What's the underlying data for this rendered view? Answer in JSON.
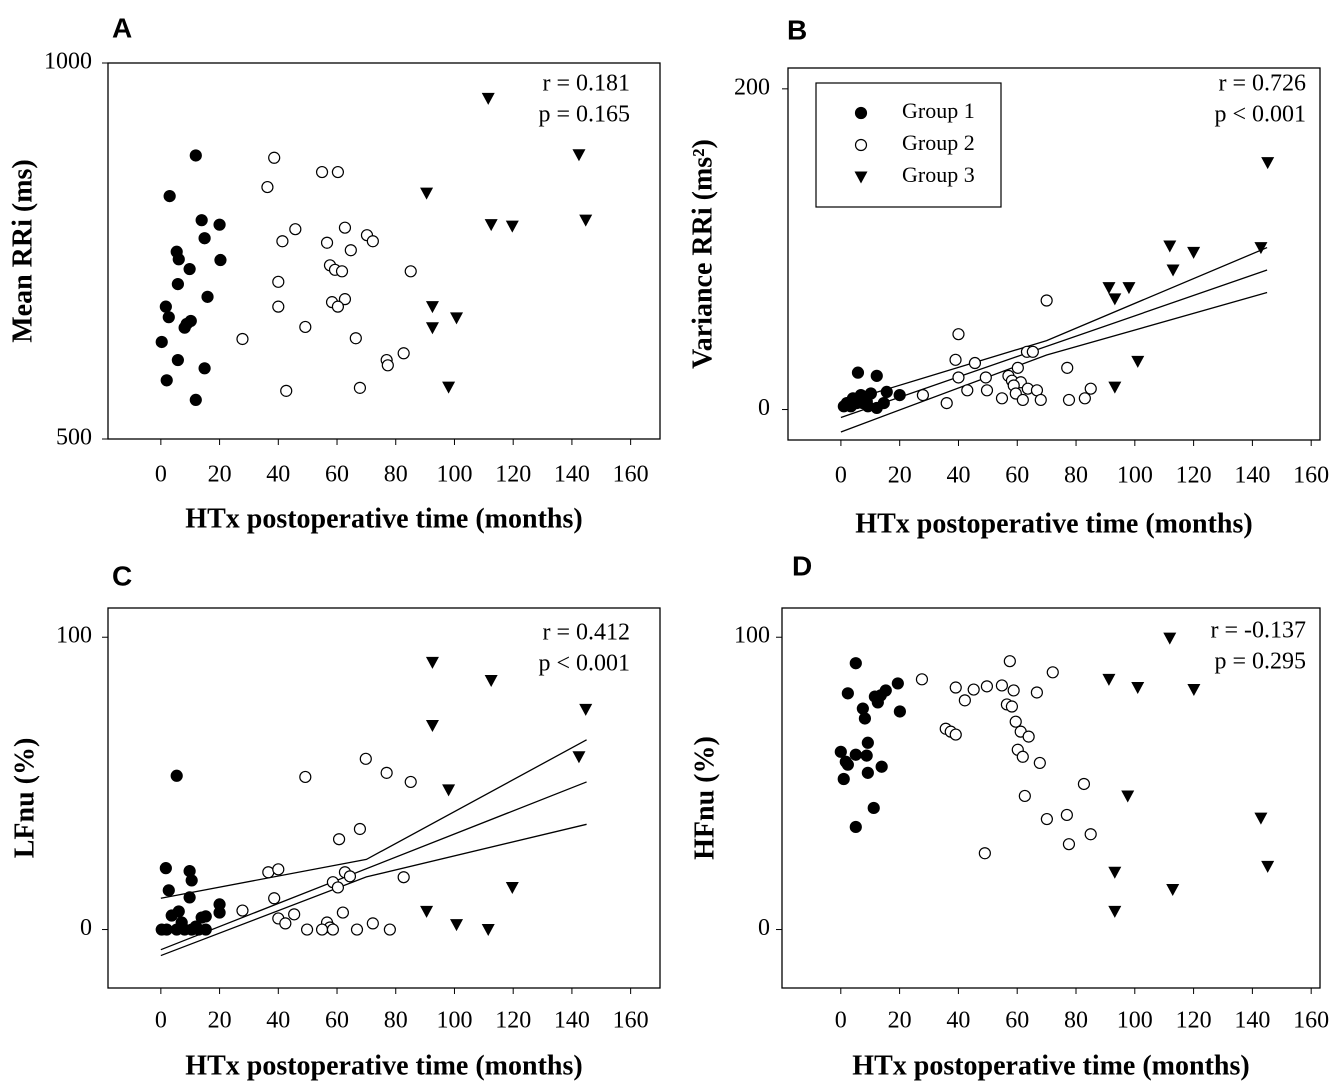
{
  "chart_data": [
    {
      "type": "scatter",
      "panel": "A",
      "y_label": "Mean RRi (ms)",
      "x_label": "HTx postoperative time (months)",
      "xlim": [
        -18,
        170
      ],
      "ylim": [
        500,
        1000
      ],
      "xticks": [
        0,
        20,
        40,
        60,
        80,
        100,
        120,
        140,
        160
      ],
      "yticks": [
        500,
        1000
      ],
      "annotations": [
        "r = 0.181",
        "p = 0.165"
      ],
      "series": [
        {
          "marker": "filled-circle",
          "color": "#000000",
          "x": [
            11.9,
            3,
            13.9,
            20,
            14.9,
            5.4,
            6.1,
            20.3,
            9.8,
            5.8,
            15.9,
            1.7,
            2.7,
            10.2,
            8.8,
            8.1,
            0.3,
            5.8,
            14.9,
            2,
            11.9
          ],
          "values": [
            877,
            823,
            791,
            785,
            767,
            749,
            739,
            738,
            726,
            706,
            689,
            676,
            662,
            657,
            653,
            648,
            629,
            605,
            594,
            578,
            552
          ]
        },
        {
          "marker": "open-circle",
          "color": "#000000",
          "x": [
            38.6,
            36.3,
            54.9,
            60.3,
            45.8,
            41.4,
            62.7,
            70.2,
            72.2,
            56.6,
            64.7,
            57.6,
            59.3,
            61.7,
            85.1,
            40,
            62.7,
            58.3,
            60.3,
            40,
            49.2,
            27.8,
            66.4,
            82.7,
            76.9,
            77.3,
            67.8,
            42.7
          ],
          "values": [
            874,
            835,
            855,
            855,
            779,
            763,
            781,
            771,
            763,
            761,
            751,
            731,
            725,
            723,
            723,
            709,
            686,
            682,
            676,
            676,
            649,
            633,
            634,
            614,
            605,
            598,
            568,
            564
          ]
        },
        {
          "marker": "down-triangle",
          "color": "#000000",
          "x": [
            111.5,
            142.4,
            90.5,
            112.5,
            119.7,
            144.7,
            92.5,
            100.7,
            92.5,
            98
          ],
          "values": [
            953,
            878,
            827,
            785,
            783,
            791,
            676,
            661,
            648,
            569
          ]
        }
      ]
    },
    {
      "type": "scatter",
      "panel": "B",
      "y_label": "Variance RRi (ms²)",
      "x_label": "HTx postoperative time (months)",
      "xlim": [
        -18,
        163
      ],
      "ylim": [
        -19,
        213
      ],
      "xticks": [
        0,
        20,
        40,
        60,
        80,
        100,
        120,
        140,
        160
      ],
      "yticks": [
        0,
        200
      ],
      "annotations": [
        "r = 0.726",
        "p < 0.001"
      ],
      "legend": "upper left",
      "series": [
        {
          "name": "Group 1",
          "marker": "filled-circle",
          "color": "#000000",
          "x": [
            5.8,
            12.2,
            6.8,
            10.2,
            15.6,
            20,
            4.1,
            2,
            3.4,
            7.5,
            9.2,
            12.2,
            14.6,
            1,
            5.4,
            8.8
          ],
          "values": [
            23,
            21,
            9,
            10,
            11,
            9,
            7,
            4,
            2,
            4,
            2,
            1,
            4,
            2,
            4,
            5
          ]
        },
        {
          "name": "Group 2",
          "marker": "open-circle",
          "color": "#000000",
          "x": [
            70,
            40,
            63.3,
            65.3,
            39,
            45.6,
            60.2,
            77,
            40,
            57,
            49.3,
            58.2,
            61.2,
            58.8,
            63.6,
            66.7,
            85,
            43,
            59.5,
            54.8,
            61.9,
            68,
            83,
            77.6,
            36,
            27.9,
            49.7
          ],
          "values": [
            68,
            47,
            36,
            36,
            31,
            29,
            26,
            26,
            20,
            21,
            20,
            18,
            17,
            15,
            13,
            12,
            13,
            12,
            10,
            7,
            6,
            6,
            7,
            6,
            4,
            9,
            12
          ]
        },
        {
          "name": "Group 3",
          "marker": "down-triangle",
          "color": "#000000",
          "x": [
            145.2,
            111.9,
            120,
            142.9,
            113,
            98,
            91.2,
            93.2,
            101,
            93.2
          ],
          "values": [
            154,
            102,
            98,
            101,
            87,
            76,
            76,
            69,
            30,
            14
          ]
        }
      ],
      "lines": [
        {
          "x": [
            0,
            145
          ],
          "values": [
            -5,
            87
          ]
        },
        {
          "x": [
            0,
            70,
            145
          ],
          "values": [
            4,
            43,
            101
          ]
        },
        {
          "x": [
            0,
            70,
            145
          ],
          "values": [
            -14,
            34,
            73
          ]
        }
      ]
    },
    {
      "type": "scatter",
      "panel": "C",
      "y_label": "LFnu (%)",
      "x_label": "HTx postoperative time (months)",
      "xlim": [
        -18,
        170
      ],
      "ylim": [
        -20,
        110
      ],
      "xticks": [
        0,
        20,
        40,
        60,
        80,
        100,
        120,
        140,
        160
      ],
      "yticks": [
        0,
        100
      ],
      "annotations": [
        "r = 0.412",
        "p < 0.001"
      ],
      "series": [
        {
          "marker": "filled-circle",
          "color": "#000000",
          "x": [
            5.4,
            1.7,
            9.8,
            2.7,
            10.5,
            9.8,
            20,
            20,
            6.1,
            3.7,
            13.9,
            15.3,
            7.1,
            0.3,
            2,
            5.4,
            8.1,
            10.5,
            12.9,
            15.3,
            11.9
          ],
          "values": [
            52.6,
            21,
            20,
            13.4,
            16.8,
            11,
            8.6,
            5.8,
            6.2,
            4.8,
            4.1,
            4.5,
            2.4,
            0,
            0,
            0,
            0,
            0,
            0,
            0,
            1
          ]
        },
        {
          "marker": "open-circle",
          "color": "#000000",
          "x": [
            69.8,
            49.2,
            76.9,
            85.1,
            67.8,
            60.7,
            36.6,
            40,
            62.7,
            64.4,
            58.6,
            60.3,
            82.7,
            38.6,
            62,
            27.8,
            45.4,
            40,
            42.4,
            56.6,
            72.2,
            57.6,
            49.8,
            54.9,
            58.6,
            66.8,
            78
          ],
          "values": [
            58.4,
            52.2,
            53.6,
            50.5,
            34.4,
            30.9,
            19.6,
            20.6,
            19.6,
            18.2,
            16.2,
            14.4,
            17.9,
            10.7,
            5.8,
            6.5,
            5.2,
            3.8,
            2.1,
            2.4,
            2.1,
            0.7,
            0,
            0,
            0,
            0,
            0
          ]
        },
        {
          "marker": "down-triangle",
          "color": "#000000",
          "x": [
            92.5,
            112.5,
            144.7,
            92.5,
            142.4,
            98,
            119.7,
            90.5,
            100.7,
            111.5
          ],
          "values": [
            91.4,
            85.2,
            75.3,
            69.8,
            59.1,
            47.8,
            14.4,
            6.2,
            1.7,
            0
          ]
        }
      ],
      "lines": [
        {
          "x": [
            0,
            145
          ],
          "values": [
            -6.9,
            50.5
          ]
        },
        {
          "x": [
            0,
            70,
            145
          ],
          "values": [
            10.7,
            24,
            64.9
          ]
        },
        {
          "x": [
            0,
            70,
            145
          ],
          "values": [
            -8.9,
            18,
            36
          ]
        }
      ]
    },
    {
      "type": "scatter",
      "panel": "D",
      "y_label": "HFnu (%)",
      "x_label": "HTx postoperative time (months)",
      "xlim": [
        -20,
        163
      ],
      "ylim": [
        -20,
        110
      ],
      "xticks": [
        0,
        20,
        40,
        60,
        80,
        100,
        120,
        140,
        160
      ],
      "yticks": [
        0,
        100
      ],
      "annotations": [
        "r = -0.137",
        "p = 0.295"
      ],
      "series": [
        {
          "marker": "filled-circle",
          "color": "#000000",
          "x": [
            5.1,
            2.4,
            19.4,
            15.3,
            11.6,
            13.6,
            7.5,
            20.1,
            12.6,
            8.2,
            9.2,
            0,
            5.1,
            8.8,
            1.7,
            2.4,
            13.9,
            9.2,
            1,
            11.2,
            5.1
          ],
          "values": [
            91.1,
            80.8,
            84.2,
            81.8,
            79.7,
            80.1,
            75.6,
            74.6,
            77.7,
            72.2,
            63.9,
            60.8,
            59.8,
            59.5,
            57.4,
            56.4,
            55.7,
            53.6,
            51.5,
            41.6,
            35.1
          ]
        },
        {
          "marker": "open-circle",
          "color": "#000000",
          "x": [
            57.5,
            72.1,
            27.6,
            39.1,
            49.7,
            54.8,
            58.8,
            66.7,
            42.2,
            45.2,
            56.5,
            58.2,
            59.5,
            61.2,
            63.9,
            35.7,
            37.4,
            39.1,
            60.2,
            61.9,
            67.7,
            82.7,
            62.6,
            76.9,
            70.1,
            85,
            77.6,
            49
          ],
          "values": [
            91.8,
            88,
            85.6,
            82.8,
            83.2,
            83.5,
            81.8,
            81.1,
            78.4,
            82.1,
            77,
            76.3,
            71.1,
            67.7,
            66,
            68.7,
            67.7,
            66.7,
            61.5,
            59.1,
            57,
            49.8,
            45.7,
            39.2,
            37.8,
            32.6,
            29.2,
            26.1
          ]
        },
        {
          "marker": "down-triangle",
          "color": "#000000",
          "x": [
            111.9,
            91.2,
            101,
            120.1,
            97.6,
            142.9,
            145.2,
            93.2,
            112.9,
            93.2
          ],
          "values": [
            99.7,
            85.6,
            82.8,
            82.1,
            45.7,
            38.1,
            21.6,
            19.6,
            13.7,
            6.2
          ]
        }
      ]
    }
  ]
}
